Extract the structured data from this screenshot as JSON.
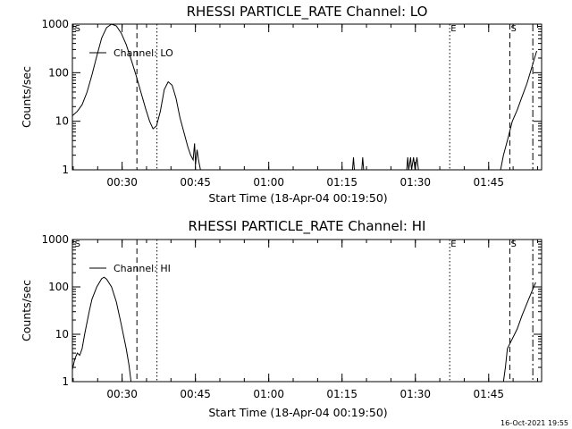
{
  "footer_timestamp": "16-Oct-2021 19:55",
  "chart_data": [
    {
      "type": "line",
      "title": "RHESSI PARTICLE_RATE Channel: LO",
      "xlabel": "Start Time (18-Apr-04 00:19:50)",
      "ylabel": "Counts/sec",
      "yscale": "log",
      "ylim": [
        1,
        1000
      ],
      "xlim_minutes": [
        0,
        96
      ],
      "x_ticks": [
        {
          "t": 10.17,
          "label": "00:30"
        },
        {
          "t": 25.17,
          "label": "00:45"
        },
        {
          "t": 40.17,
          "label": "01:00"
        },
        {
          "t": 55.17,
          "label": "01:15"
        },
        {
          "t": 70.17,
          "label": "01:30"
        },
        {
          "t": 85.17,
          "label": "01:45"
        }
      ],
      "y_ticks": [
        {
          "v": 1,
          "label": "1"
        },
        {
          "v": 10,
          "label": "10"
        },
        {
          "v": 100,
          "label": "100"
        },
        {
          "v": 1000,
          "label": "1000"
        }
      ],
      "legend": "top-left",
      "series": [
        {
          "name": "Channel: LO",
          "segments": [
            [
              [
                0,
                13
              ],
              [
                1,
                16
              ],
              [
                2,
                22
              ],
              [
                3,
                40
              ],
              [
                4,
                90
              ],
              [
                5,
                220
              ],
              [
                6,
                520
              ],
              [
                7,
                850
              ],
              [
                8,
                1000
              ],
              [
                9,
                920
              ],
              [
                10,
                650
              ],
              [
                11,
                380
              ],
              [
                12,
                190
              ],
              [
                13,
                90
              ],
              [
                14,
                40
              ],
              [
                15,
                18
              ],
              [
                15.8,
                10
              ],
              [
                16.5,
                7
              ],
              [
                17.2,
                8
              ],
              [
                18,
                16
              ],
              [
                18.8,
                45
              ],
              [
                19.6,
                65
              ],
              [
                20.4,
                55
              ],
              [
                21.2,
                30
              ],
              [
                22,
                12
              ],
              [
                22.8,
                6
              ],
              [
                23.6,
                3
              ],
              [
                24.2,
                2
              ],
              [
                24.7,
                1.6
              ],
              [
                25,
                3.5
              ],
              [
                25.2,
                1.3
              ],
              [
                25.5,
                2.6
              ],
              [
                25.8,
                1.6
              ],
              [
                26.2,
                1
              ]
            ],
            [
              [
                57.3,
                1
              ],
              [
                57.5,
                1.8
              ],
              [
                57.7,
                1
              ]
            ],
            [
              [
                59.2,
                1
              ],
              [
                59.4,
                1.8
              ],
              [
                59.6,
                1
              ]
            ],
            [
              [
                68.4,
                1
              ],
              [
                68.6,
                1.8
              ],
              [
                68.8,
                1
              ],
              [
                69.2,
                1.8
              ],
              [
                69.4,
                1
              ],
              [
                69.8,
                1.8
              ],
              [
                70.1,
                1
              ],
              [
                70.5,
                1.8
              ],
              [
                70.8,
                1
              ]
            ],
            [
              [
                87.6,
                1
              ],
              [
                88.2,
                2
              ],
              [
                89,
                4
              ],
              [
                90,
                10
              ],
              [
                91,
                17
              ],
              [
                92,
                32
              ],
              [
                93,
                60
              ],
              [
                94,
                130
              ],
              [
                95,
                280
              ]
            ]
          ]
        }
      ],
      "annotations": [
        {
          "t": 0.3,
          "text": "S",
          "line": "none"
        },
        {
          "t": 13.2,
          "text": "",
          "line": "dashed"
        },
        {
          "t": 17.3,
          "text": "",
          "line": "dotted"
        },
        {
          "t": 77.2,
          "text": "E",
          "line": "dotted"
        },
        {
          "t": 89.5,
          "text": "S",
          "line": "dashed"
        },
        {
          "t": 94.2,
          "text": "",
          "line": "dashdot"
        }
      ]
    },
    {
      "type": "line",
      "title": "RHESSI PARTICLE_RATE Channel: HI",
      "xlabel": "Start Time (18-Apr-04 00:19:50)",
      "ylabel": "Counts/sec",
      "yscale": "log",
      "ylim": [
        1,
        1000
      ],
      "xlim_minutes": [
        0,
        96
      ],
      "x_ticks": [
        {
          "t": 10.17,
          "label": "00:30"
        },
        {
          "t": 25.17,
          "label": "00:45"
        },
        {
          "t": 40.17,
          "label": "01:00"
        },
        {
          "t": 55.17,
          "label": "01:15"
        },
        {
          "t": 70.17,
          "label": "01:30"
        },
        {
          "t": 85.17,
          "label": "01:45"
        }
      ],
      "y_ticks": [
        {
          "v": 1,
          "label": "1"
        },
        {
          "v": 10,
          "label": "10"
        },
        {
          "v": 100,
          "label": "100"
        },
        {
          "v": 1000,
          "label": "1000"
        }
      ],
      "legend": "top-left",
      "series": [
        {
          "name": "Channel: HI",
          "segments": [
            [
              [
                0,
                1.8
              ],
              [
                0.5,
                3
              ],
              [
                1,
                4
              ],
              [
                1.5,
                3.6
              ],
              [
                2,
                5
              ],
              [
                2.5,
                10
              ],
              [
                3,
                18
              ],
              [
                3.5,
                32
              ],
              [
                4,
                55
              ],
              [
                5,
                100
              ],
              [
                6,
                150
              ],
              [
                6.5,
                160
              ],
              [
                7,
                145
              ],
              [
                8,
                100
              ],
              [
                9,
                48
              ],
              [
                10,
                16
              ],
              [
                11,
                5
              ],
              [
                11.6,
                2.2
              ],
              [
                12,
                1
              ]
            ],
            [
              [
                88.2,
                1
              ],
              [
                88.6,
                2
              ],
              [
                89,
                5
              ],
              [
                90,
                8
              ],
              [
                91,
                13
              ],
              [
                92,
                25
              ],
              [
                93,
                45
              ],
              [
                94,
                80
              ],
              [
                94.8,
                125
              ]
            ]
          ]
        }
      ],
      "annotations": [
        {
          "t": 0.3,
          "text": "S",
          "line": "none"
        },
        {
          "t": 13.2,
          "text": "",
          "line": "dashed"
        },
        {
          "t": 17.3,
          "text": "",
          "line": "dotted"
        },
        {
          "t": 77.2,
          "text": "E",
          "line": "dotted"
        },
        {
          "t": 89.5,
          "text": "S",
          "line": "dashed"
        },
        {
          "t": 94.2,
          "text": "",
          "line": "dashdot"
        }
      ]
    }
  ]
}
